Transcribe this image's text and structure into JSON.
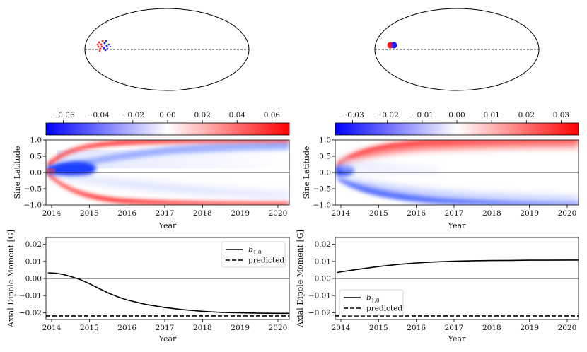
{
  "figure": {
    "panels": [
      {
        "disk": {
          "description": "full-disk view with small bipolar spot near equator"
        },
        "colorbar": {
          "ticks": [
            -0.06,
            -0.04,
            -0.02,
            0.0,
            0.02,
            0.04,
            0.06
          ],
          "tick_labels": [
            "−0.06",
            "−0.04",
            "−0.02",
            "0.00",
            "0.02",
            "0.04",
            "0.06"
          ],
          "vmin": -0.07,
          "vmax": 0.07
        },
        "butterfly": {
          "ylabel": "Sine Latitude",
          "xlabel": "Year",
          "x_ticks": [
            2014,
            2015,
            2016,
            2017,
            2018,
            2019,
            2020
          ],
          "x_tick_labels": [
            "2014",
            "2015",
            "2016",
            "2017",
            "2018",
            "2019",
            "2020"
          ],
          "y_ticks": [
            1.0,
            0.5,
            0.0,
            -0.5,
            -1.0
          ],
          "y_tick_labels": [
            "1.0",
            "0.5",
            "0.0",
            "−0.5",
            "−1.0"
          ],
          "xlim": [
            2013.85,
            2020.3
          ],
          "ylim": [
            -1.0,
            1.0
          ]
        }
      },
      {
        "disk": {
          "description": "full-disk view with compact bipolar spot near equator"
        },
        "colorbar": {
          "ticks": [
            -0.03,
            -0.02,
            -0.01,
            0.0,
            0.01,
            0.02,
            0.03
          ],
          "tick_labels": [
            "−0.03",
            "−0.02",
            "−0.01",
            "0.00",
            "0.01",
            "0.02",
            "0.03"
          ],
          "vmin": -0.035,
          "vmax": 0.035
        },
        "butterfly": {
          "ylabel": "Sine Latitude",
          "xlabel": "Year",
          "x_ticks": [
            2014,
            2015,
            2016,
            2017,
            2018,
            2019,
            2020
          ],
          "x_tick_labels": [
            "2014",
            "2015",
            "2016",
            "2017",
            "2018",
            "2019",
            "2020"
          ],
          "y_ticks": [
            1.0,
            0.5,
            0.0,
            -0.5,
            -1.0
          ],
          "y_tick_labels": [
            "1.0",
            "0.5",
            "0.0",
            "−0.5",
            "−1.0"
          ],
          "xlim": [
            2013.85,
            2020.3
          ],
          "ylim": [
            -1.0,
            1.0
          ]
        }
      }
    ]
  },
  "chart_data": [
    {
      "type": "line",
      "title": "",
      "xlabel": "Year",
      "ylabel": "Axial Dipole Moment [G]",
      "xlim": [
        2013.85,
        2020.3
      ],
      "ylim": [
        -0.024,
        0.024
      ],
      "x_ticks": [
        2014,
        2015,
        2016,
        2017,
        2018,
        2019,
        2020
      ],
      "x_tick_labels": [
        "2014",
        "2015",
        "2016",
        "2017",
        "2018",
        "2019",
        "2020"
      ],
      "y_ticks": [
        0.02,
        0.01,
        0.0,
        -0.01,
        -0.02
      ],
      "y_tick_labels": [
        "0.02",
        "0.01",
        "0.00",
        "−0.01",
        "−0.02"
      ],
      "legend_position": "top-right",
      "series": [
        {
          "name": "b_{1,0}",
          "label_main": "b",
          "label_sub": "1,0",
          "style": "solid",
          "x": [
            2013.9,
            2014.1,
            2014.3,
            2014.5,
            2014.75,
            2015.0,
            2015.25,
            2015.5,
            2015.75,
            2016.0,
            2016.5,
            2017.0,
            2017.5,
            2018.0,
            2018.5,
            2019.0,
            2019.5,
            2020.0,
            2020.3
          ],
          "values": [
            0.0033,
            0.0031,
            0.0024,
            0.0012,
            -0.0006,
            -0.003,
            -0.0058,
            -0.0085,
            -0.0107,
            -0.0126,
            -0.0152,
            -0.017,
            -0.0183,
            -0.0192,
            -0.0198,
            -0.0201,
            -0.0203,
            -0.0204,
            -0.0204
          ]
        },
        {
          "name": "predicted",
          "label_main": "predicted",
          "label_sub": "",
          "style": "dashed",
          "x": [
            2013.85,
            2020.3
          ],
          "values": [
            -0.0219,
            -0.0219
          ]
        }
      ]
    },
    {
      "type": "line",
      "title": "",
      "xlabel": "Year",
      "ylabel": "Axial Dipole Moment [G]",
      "xlim": [
        2013.85,
        2020.3
      ],
      "ylim": [
        -0.024,
        0.024
      ],
      "x_ticks": [
        2014,
        2015,
        2016,
        2017,
        2018,
        2019,
        2020
      ],
      "x_tick_labels": [
        "2014",
        "2015",
        "2016",
        "2017",
        "2018",
        "2019",
        "2020"
      ],
      "y_ticks": [
        0.02,
        0.01,
        0.0,
        -0.01,
        -0.02
      ],
      "y_tick_labels": [
        "0.02",
        "0.01",
        "0.00",
        "−0.01",
        "−0.02"
      ],
      "legend_position": "bottom-left",
      "series": [
        {
          "name": "b_{1,0}",
          "label_main": "b",
          "label_sub": "1,0",
          "style": "solid",
          "x": [
            2013.9,
            2014.25,
            2014.5,
            2015.0,
            2015.5,
            2016.0,
            2016.5,
            2017.0,
            2017.5,
            2018.0,
            2018.5,
            2019.0,
            2019.5,
            2020.0,
            2020.3
          ],
          "values": [
            0.0035,
            0.0047,
            0.0055,
            0.007,
            0.0082,
            0.0091,
            0.0097,
            0.0101,
            0.0104,
            0.0105,
            0.0106,
            0.0107,
            0.0107,
            0.0108,
            0.0108
          ]
        },
        {
          "name": "predicted",
          "label_main": "predicted",
          "label_sub": "",
          "style": "dashed",
          "x": [
            2013.85,
            2020.3
          ],
          "values": [
            -0.0219,
            -0.0219
          ]
        }
      ]
    }
  ]
}
